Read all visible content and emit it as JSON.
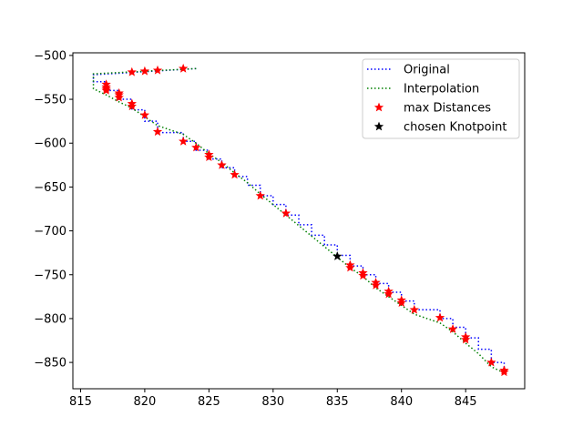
{
  "chart_data": {
    "type": "line",
    "title": "",
    "xlabel": "",
    "ylabel": "",
    "xlim": [
      814.4,
      849.6
    ],
    "ylim": [
      -880,
      -497
    ],
    "xticks": [
      815,
      820,
      825,
      830,
      835,
      840,
      845
    ],
    "yticks": [
      -500,
      -550,
      -600,
      -650,
      -700,
      -750,
      -800,
      -850
    ],
    "grid": false,
    "legend_position": "top-right",
    "colors": {
      "original": "#0000ff",
      "interpolation": "#008000",
      "max_distances": "#ff0000",
      "knotpoint": "#000000"
    },
    "series": [
      {
        "name": "Original",
        "style": "dotted",
        "x": [
          824,
          816,
          816,
          817,
          817,
          818,
          818,
          819,
          819,
          820,
          820,
          821,
          821,
          823,
          823,
          824,
          824,
          825,
          825,
          826,
          826,
          827,
          827,
          828,
          828,
          829,
          829,
          830,
          830,
          831,
          831,
          832,
          832,
          833,
          833,
          834,
          834,
          835,
          835,
          836,
          836,
          837,
          837,
          838,
          838,
          839,
          839,
          840,
          840,
          841,
          841,
          843,
          843,
          844,
          844,
          845,
          845,
          846,
          846,
          847,
          847,
          848,
          848
        ],
        "y": [
          -515,
          -522,
          -530,
          -530,
          -540,
          -540,
          -550,
          -550,
          -562,
          -562,
          -575,
          -575,
          -588,
          -588,
          -598,
          -598,
          -608,
          -608,
          -618,
          -618,
          -628,
          -628,
          -638,
          -638,
          -648,
          -648,
          -660,
          -660,
          -670,
          -670,
          -682,
          -682,
          -693,
          -693,
          -705,
          -705,
          -716,
          -716,
          -728,
          -728,
          -740,
          -740,
          -750,
          -750,
          -760,
          -760,
          -770,
          -770,
          -780,
          -780,
          -790,
          -790,
          -800,
          -800,
          -810,
          -810,
          -822,
          -822,
          -835,
          -835,
          -850,
          -850,
          -862
        ]
      },
      {
        "name": "Interpolation",
        "style": "dotted",
        "x": [
          824,
          816,
          816,
          817,
          817,
          818,
          818,
          819,
          819,
          820,
          820,
          821,
          821,
          823,
          823,
          824,
          824,
          825,
          825,
          826,
          826,
          827,
          827,
          828,
          828,
          829,
          829,
          830,
          830,
          831,
          831,
          832,
          832,
          833,
          833,
          834,
          834,
          835,
          835,
          836,
          836,
          837,
          837,
          838,
          838,
          839,
          839,
          840,
          840,
          841,
          841,
          843,
          843,
          844,
          844,
          845,
          845,
          846,
          846,
          847,
          847,
          848
        ],
        "y": [
          -515,
          -521,
          -538,
          -545,
          -545,
          -553,
          -553,
          -560,
          -560,
          -570,
          -570,
          -580,
          -580,
          -590,
          -590,
          -600,
          -600,
          -612,
          -612,
          -622,
          -622,
          -634,
          -634,
          -645,
          -645,
          -658,
          -658,
          -670,
          -670,
          -682,
          -682,
          -694,
          -694,
          -706,
          -706,
          -718,
          -718,
          -730,
          -730,
          -742,
          -742,
          -752,
          -752,
          -765,
          -765,
          -775,
          -775,
          -785,
          -785,
          -795,
          -795,
          -805,
          -805,
          -815,
          -815,
          -828,
          -828,
          -840,
          -840,
          -855,
          -855,
          -862
        ]
      },
      {
        "name": "max Distances",
        "marker": "star",
        "x": [
          823,
          821,
          820,
          819,
          817,
          817,
          817,
          817,
          818,
          818,
          818,
          819,
          819,
          820,
          821,
          823,
          824,
          825,
          825,
          826,
          827,
          829,
          831,
          836,
          836,
          837,
          837,
          838,
          838,
          839,
          839,
          840,
          840,
          841,
          843,
          844,
          845,
          845,
          847,
          848,
          848
        ],
        "y": [
          -515,
          -517,
          -518,
          -519,
          -533,
          -536,
          -538,
          -540,
          -543,
          -545,
          -548,
          -555,
          -558,
          -568,
          -587,
          -598,
          -605,
          -613,
          -616,
          -625,
          -636,
          -660,
          -680,
          -739,
          -742,
          -748,
          -751,
          -759,
          -762,
          -769,
          -772,
          -779,
          -782,
          -790,
          -799,
          -812,
          -821,
          -824,
          -850,
          -859,
          -861
        ]
      },
      {
        "name": "chosen Knotpoint",
        "marker": "star",
        "x": [
          835
        ],
        "y": [
          -729
        ]
      }
    ]
  }
}
